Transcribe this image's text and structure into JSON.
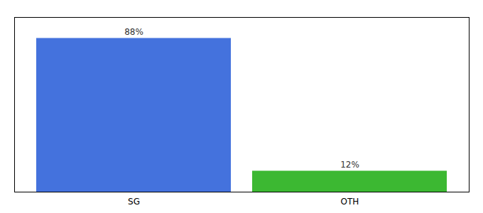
{
  "chart_data": {
    "type": "bar",
    "categories": [
      "SG",
      "OTH"
    ],
    "values": [
      88,
      12
    ],
    "colors": [
      "#4472dd",
      "#3cb832"
    ],
    "data_labels": true,
    "value_labels": [
      "88%",
      "12%"
    ],
    "ylim": [
      0,
      100
    ],
    "yticks": [],
    "tick_labels": "x"
  }
}
